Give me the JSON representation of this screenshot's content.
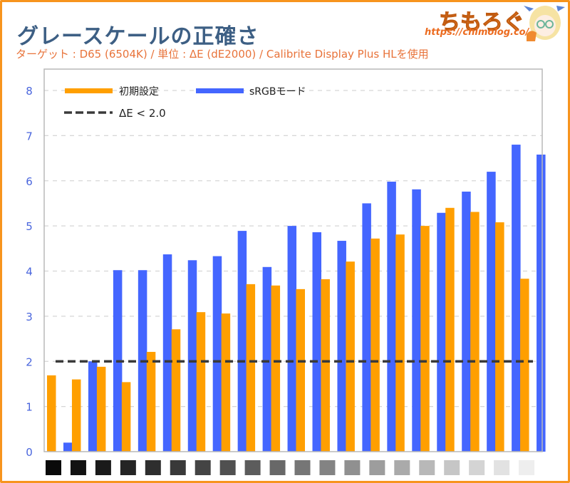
{
  "header": {
    "title": "グレースケールの正確さ",
    "subtitle": "ターゲット : D65 (6504K) / 単位 : ΔE (dE2000) / Calibrite Display Plus HLを使用"
  },
  "logo": {
    "text": "ちもろぐ",
    "url": "https://chimolog.co/",
    "avatar_icon": "anime-girl-mascot-icon"
  },
  "colors": {
    "initial": "#ff9f00",
    "srgb": "#4466ff",
    "threshold": "#3a3a3a",
    "axis_text": "#4a66dd",
    "title": "#3d5f84",
    "subtitle": "#e8733a",
    "frame": "#f7941d"
  },
  "chart_data": {
    "type": "bar",
    "title": "グレースケールの正確さ",
    "subtitle": "ターゲット : D65 (6504K) / 単位 : ΔE (dE2000) / Calibrite Display Plus HLを使用",
    "xlabel": "",
    "ylabel": "",
    "ylim": [
      0,
      8
    ],
    "yticks": [
      "0",
      "1",
      "2",
      "3",
      "4",
      "5",
      "6",
      "7",
      "8"
    ],
    "grid": true,
    "legend_position": "top-left",
    "categories": [
      "gray-01",
      "gray-02",
      "gray-03",
      "gray-04",
      "gray-05",
      "gray-06",
      "gray-07",
      "gray-08",
      "gray-09",
      "gray-10",
      "gray-11",
      "gray-12",
      "gray-13",
      "gray-14",
      "gray-15",
      "gray-16",
      "gray-17",
      "gray-18",
      "gray-19",
      "gray-20"
    ],
    "category_swatches": [
      "#0a0a0a",
      "#121212",
      "#1a1a1a",
      "#242424",
      "#2e2e2e",
      "#393939",
      "#444444",
      "#505050",
      "#5c5c5c",
      "#686868",
      "#767676",
      "#838383",
      "#909090",
      "#9d9d9d",
      "#aaaaaa",
      "#b8b8b8",
      "#c6c6c6",
      "#d4d4d4",
      "#e2e2e2",
      "#eeeeee"
    ],
    "series": [
      {
        "name": "初期設定",
        "values": [
          1.69,
          1.6,
          1.88,
          1.54,
          2.21,
          2.71,
          3.09,
          3.06,
          3.71,
          3.68,
          3.6,
          3.82,
          4.21,
          4.72,
          4.81,
          5.0,
          5.4,
          5.31,
          5.08,
          3.83
        ]
      },
      {
        "name": "sRGBモード",
        "values": [
          0.2,
          2.0,
          4.02,
          4.02,
          4.37,
          4.24,
          4.33,
          4.89,
          4.09,
          5.0,
          4.86,
          4.67,
          5.5,
          5.98,
          5.81,
          5.29,
          5.76,
          6.2,
          6.8,
          6.58
        ]
      }
    ],
    "threshold": {
      "name": "ΔE < 2.0",
      "value": 2.0,
      "style": "dashed"
    }
  }
}
